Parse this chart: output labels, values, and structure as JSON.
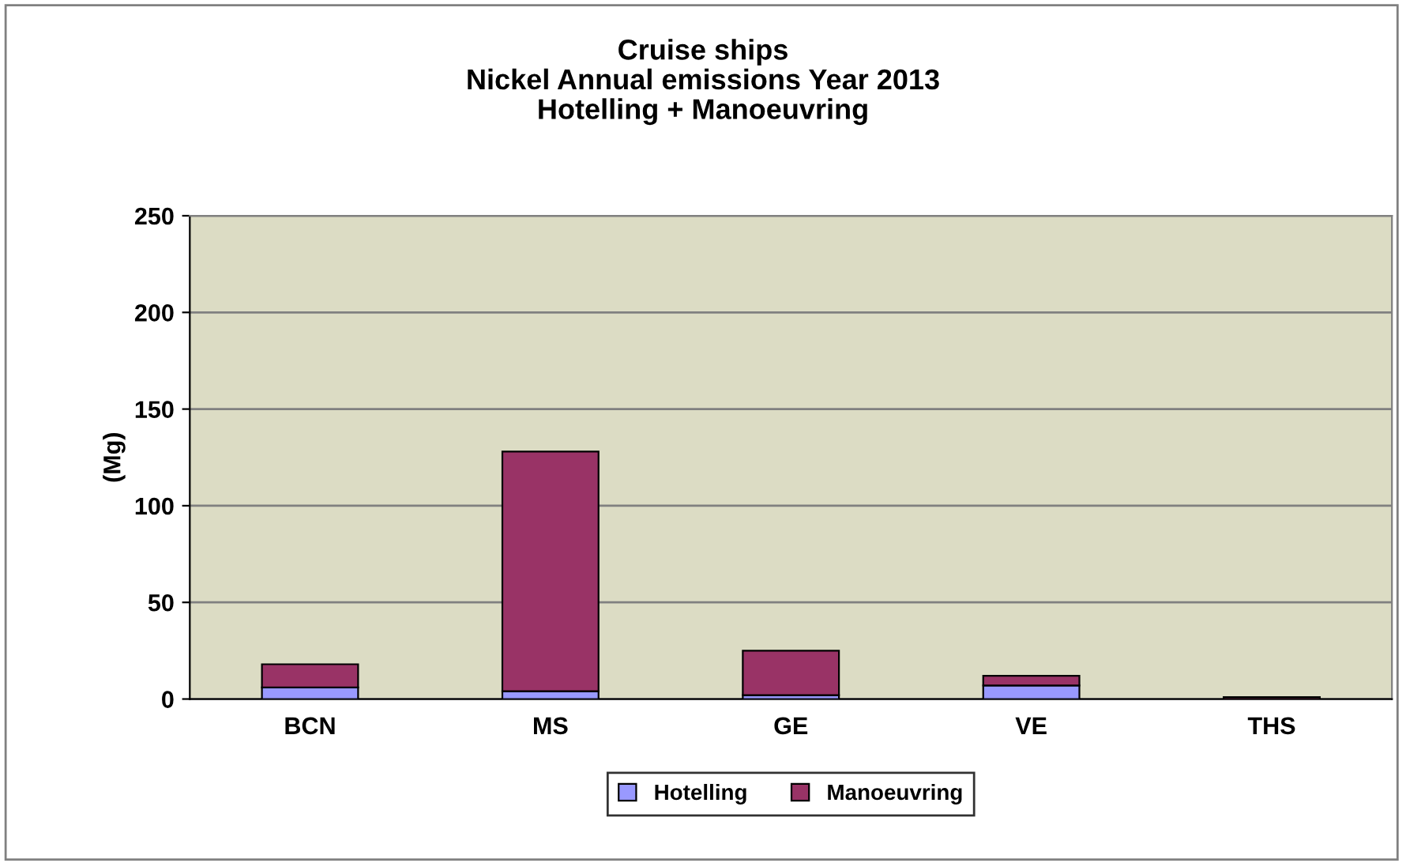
{
  "chart_data": {
    "type": "bar",
    "title": "Cruise ships\nNickel Annual emissions Year 2013\nHotelling + Manoeuvring",
    "ylabel": "(Mg)",
    "categories": [
      "BCN",
      "MS",
      "GE",
      "VE",
      "THS"
    ],
    "stacked": true,
    "series": [
      {
        "name": "Hotelling",
        "color": "#9999ff",
        "values": [
          6,
          4,
          2,
          7,
          null
        ]
      },
      {
        "name": "Manoeuvring",
        "color": "#993366",
        "values": [
          12,
          124,
          23,
          5,
          1
        ]
      }
    ],
    "ylim": [
      0,
      250
    ],
    "yticks": [
      0,
      50,
      100,
      150,
      200,
      250
    ],
    "grid": "y",
    "legend": "bottom"
  }
}
